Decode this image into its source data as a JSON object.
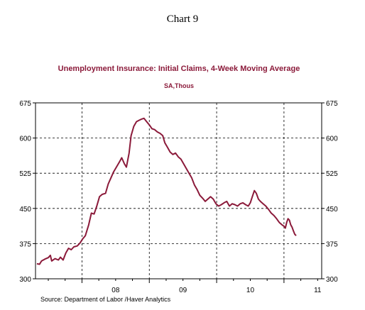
{
  "heading": "Chart 9",
  "source": "Source:  Department of Labor /Haver Analytics",
  "colors": {
    "series": "#8b1a3a",
    "title": "#8b1a3a",
    "axis": "#000000",
    "grid": "#000000"
  },
  "chart_data": {
    "type": "line",
    "title": "Unemployment Insurance: Initial Claims, 4-Week Moving Average",
    "subtitle": "SA,Thous",
    "ylim": [
      300,
      675
    ],
    "yticks": [
      300,
      375,
      450,
      525,
      600,
      675
    ],
    "xlim": [
      2007.31,
      2011.56
    ],
    "x_tick_labels": [
      {
        "label": "08",
        "x": 2008.5
      },
      {
        "label": "09",
        "x": 2009.5
      },
      {
        "label": "10",
        "x": 2010.5
      },
      {
        "label": "11",
        "x": 2011.5
      }
    ],
    "grid": {
      "horizontal": true,
      "vertical": true,
      "vertical_at": [
        2008.0,
        2009.0,
        2010.0,
        2011.0
      ],
      "style": "dashed"
    },
    "series": [
      {
        "values": [
          [
            2007.33,
            332
          ],
          [
            2007.37,
            331
          ],
          [
            2007.4,
            338
          ],
          [
            2007.45,
            342
          ],
          [
            2007.5,
            345
          ],
          [
            2007.53,
            350
          ],
          [
            2007.55,
            338
          ],
          [
            2007.6,
            343
          ],
          [
            2007.65,
            340
          ],
          [
            2007.68,
            346
          ],
          [
            2007.72,
            340
          ],
          [
            2007.76,
            355
          ],
          [
            2007.8,
            365
          ],
          [
            2007.84,
            362
          ],
          [
            2007.88,
            368
          ],
          [
            2007.93,
            370
          ],
          [
            2007.97,
            376
          ],
          [
            2008.01,
            385
          ],
          [
            2008.05,
            392
          ],
          [
            2008.1,
            415
          ],
          [
            2008.14,
            440
          ],
          [
            2008.18,
            438
          ],
          [
            2008.22,
            455
          ],
          [
            2008.26,
            475
          ],
          [
            2008.3,
            480
          ],
          [
            2008.35,
            482
          ],
          [
            2008.39,
            502
          ],
          [
            2008.43,
            515
          ],
          [
            2008.47,
            528
          ],
          [
            2008.52,
            540
          ],
          [
            2008.56,
            550
          ],
          [
            2008.59,
            558
          ],
          [
            2008.63,
            545
          ],
          [
            2008.66,
            538
          ],
          [
            2008.7,
            568
          ],
          [
            2008.73,
            605
          ],
          [
            2008.77,
            625
          ],
          [
            2008.81,
            635
          ],
          [
            2008.85,
            638
          ],
          [
            2008.88,
            640
          ],
          [
            2008.92,
            642
          ],
          [
            2008.96,
            635
          ],
          [
            2009.0,
            628
          ],
          [
            2009.04,
            620
          ],
          [
            2009.08,
            618
          ],
          [
            2009.12,
            613
          ],
          [
            2009.16,
            610
          ],
          [
            2009.2,
            605
          ],
          [
            2009.23,
            590
          ],
          [
            2009.27,
            580
          ],
          [
            2009.31,
            570
          ],
          [
            2009.35,
            565
          ],
          [
            2009.39,
            568
          ],
          [
            2009.43,
            560
          ],
          [
            2009.47,
            555
          ],
          [
            2009.51,
            545
          ],
          [
            2009.55,
            535
          ],
          [
            2009.59,
            525
          ],
          [
            2009.63,
            515
          ],
          [
            2009.67,
            500
          ],
          [
            2009.71,
            490
          ],
          [
            2009.75,
            478
          ],
          [
            2009.79,
            472
          ],
          [
            2009.83,
            465
          ],
          [
            2009.87,
            470
          ],
          [
            2009.91,
            475
          ],
          [
            2009.95,
            470
          ],
          [
            2009.99,
            460
          ],
          [
            2010.03,
            455
          ],
          [
            2010.07,
            458
          ],
          [
            2010.11,
            462
          ],
          [
            2010.15,
            465
          ],
          [
            2010.19,
            455
          ],
          [
            2010.23,
            460
          ],
          [
            2010.27,
            458
          ],
          [
            2010.31,
            455
          ],
          [
            2010.35,
            460
          ],
          [
            2010.39,
            462
          ],
          [
            2010.43,
            458
          ],
          [
            2010.47,
            455
          ],
          [
            2010.5,
            462
          ],
          [
            2010.53,
            475
          ],
          [
            2010.56,
            488
          ],
          [
            2010.59,
            482
          ],
          [
            2010.62,
            470
          ],
          [
            2010.65,
            465
          ],
          [
            2010.69,
            460
          ],
          [
            2010.73,
            455
          ],
          [
            2010.77,
            448
          ],
          [
            2010.81,
            440
          ],
          [
            2010.85,
            435
          ],
          [
            2010.89,
            428
          ],
          [
            2010.93,
            420
          ],
          [
            2010.97,
            415
          ],
          [
            2011.0,
            412
          ],
          [
            2011.02,
            408
          ],
          [
            2011.04,
            420
          ],
          [
            2011.06,
            428
          ],
          [
            2011.08,
            425
          ],
          [
            2011.1,
            415
          ],
          [
            2011.12,
            410
          ],
          [
            2011.14,
            402
          ],
          [
            2011.16,
            395
          ],
          [
            2011.18,
            392
          ]
        ]
      }
    ]
  }
}
